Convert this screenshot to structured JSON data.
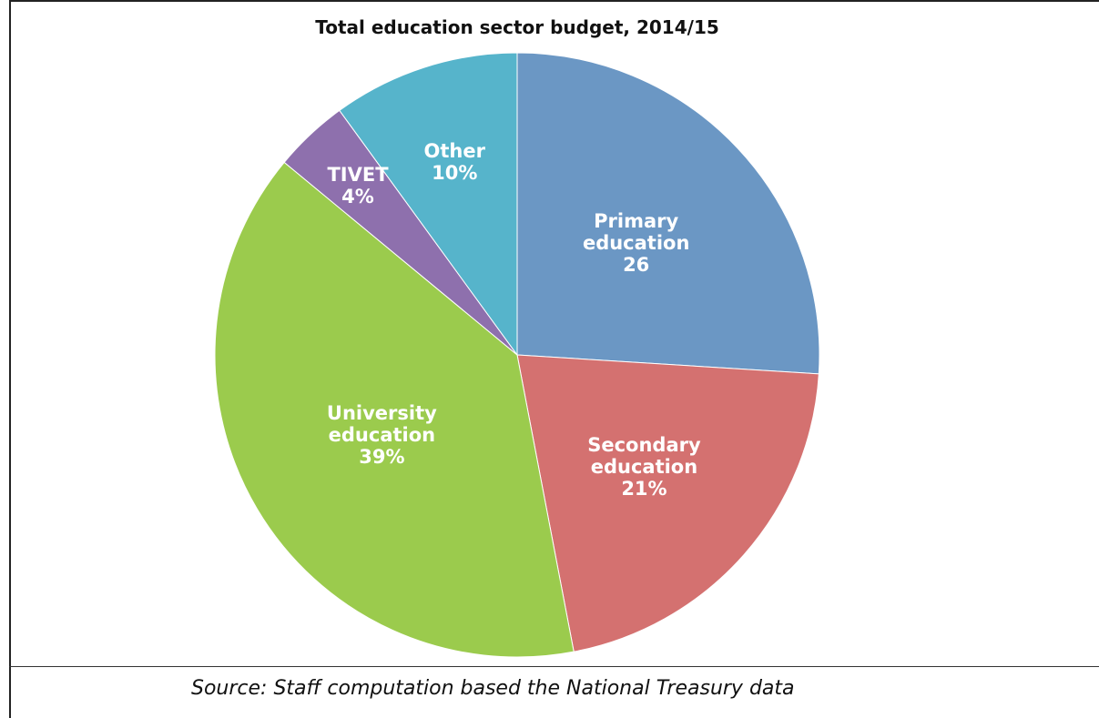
{
  "chart_data": {
    "type": "pie",
    "title": "Total education sector budget, 2014/15",
    "categories": [
      "Primary education",
      "Secondary education",
      "University education",
      "TIVET",
      "Other"
    ],
    "values": [
      26,
      21,
      39,
      4,
      10
    ],
    "value_labels": [
      "26",
      "21%",
      "39%",
      "4%",
      "10%"
    ],
    "colors": [
      "#6b97c4",
      "#d47170",
      "#9bcb4d",
      "#8e70ad",
      "#56b4cb"
    ],
    "source": "Source: Staff computation based the National Treasury data"
  }
}
